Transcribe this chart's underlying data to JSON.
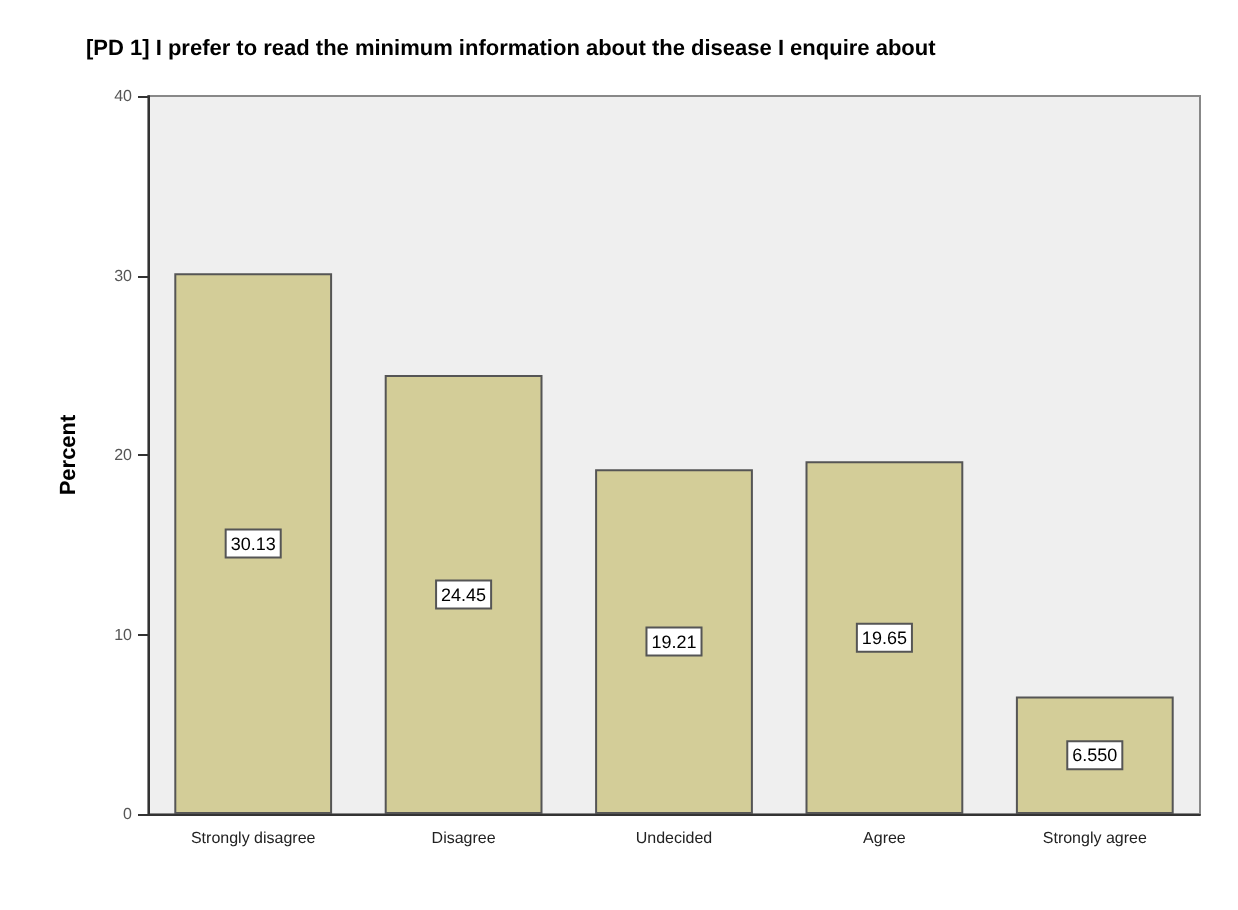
{
  "chart_data": {
    "type": "bar",
    "title": "[PD 1] I prefer to read the minimum information about the disease I enquire about",
    "ylabel": "Percent",
    "categories": [
      "Strongly disagree",
      "Disagree",
      "Undecided",
      "Agree",
      "Strongly agree"
    ],
    "values": [
      30.13,
      24.45,
      19.21,
      19.65,
      6.55
    ],
    "value_labels": [
      "30.13",
      "24.45",
      "19.21",
      "19.65",
      "6.550"
    ],
    "color": "#d3cd98",
    "ylim": [
      0,
      40
    ],
    "yticks": [
      0,
      10,
      20,
      30,
      40
    ]
  }
}
